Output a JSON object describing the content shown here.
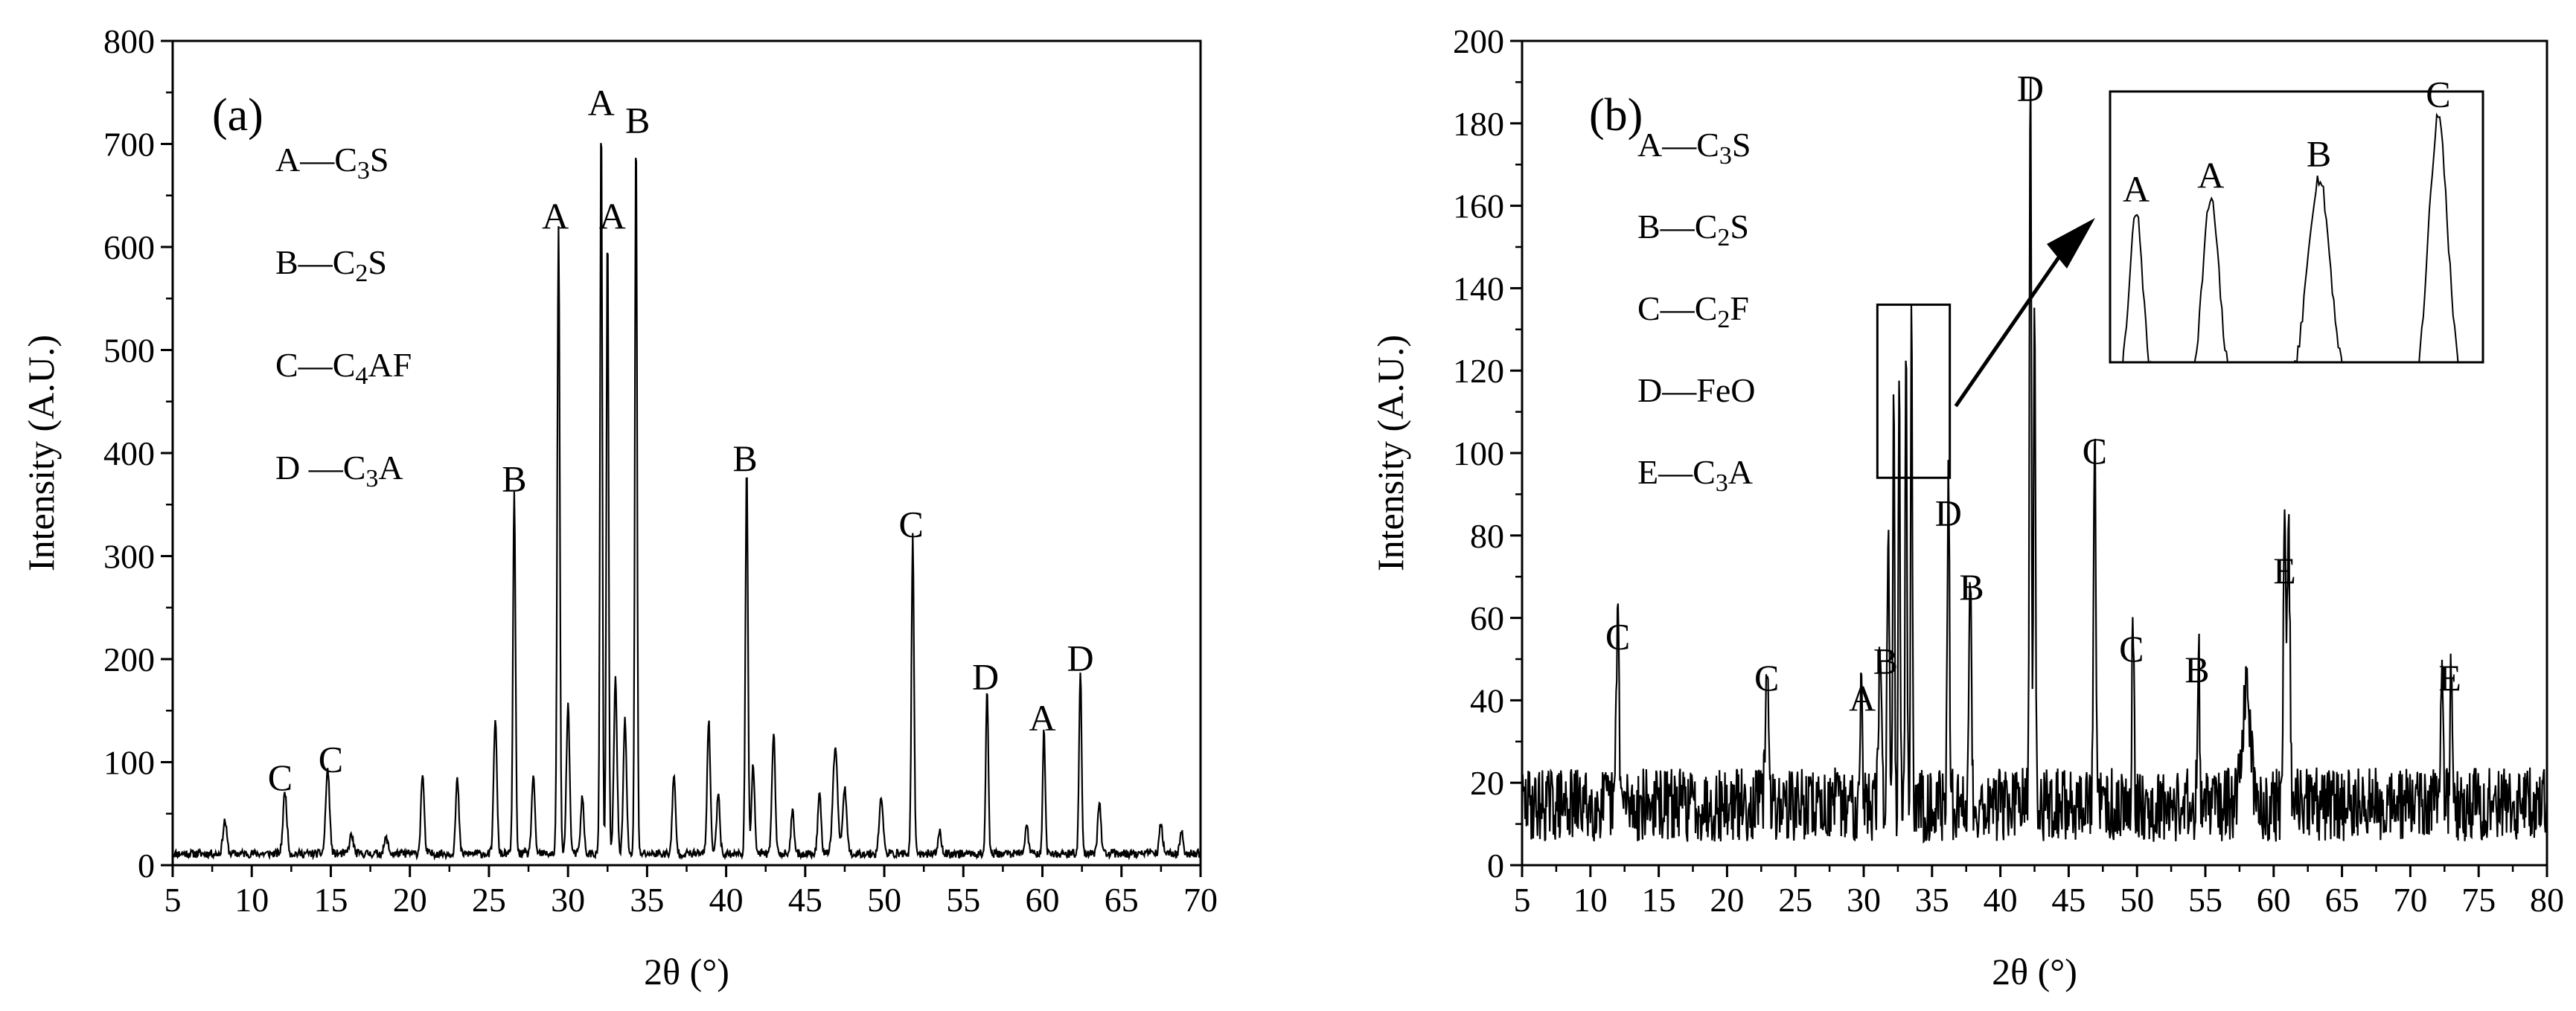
{
  "chart_data": [
    {
      "type": "line",
      "panel_label": "(a)",
      "xlabel": "2θ (°)",
      "ylabel": "Intensity (A.U.)",
      "xlim": [
        5,
        70
      ],
      "ylim": [
        0,
        800
      ],
      "xticks": [
        5,
        10,
        15,
        20,
        25,
        30,
        35,
        40,
        45,
        50,
        55,
        60,
        65,
        70
      ],
      "yticks": [
        0,
        100,
        200,
        300,
        400,
        500,
        600,
        700,
        800
      ],
      "grid": false,
      "legend_position": "top-left",
      "legend": [
        {
          "letter": "A",
          "formula": [
            [
              "C",
              ""
            ],
            [
              "3",
              "sub"
            ],
            [
              "S",
              ""
            ]
          ]
        },
        {
          "letter": "B",
          "formula": [
            [
              "C",
              ""
            ],
            [
              "2",
              "sub"
            ],
            [
              "S",
              ""
            ]
          ]
        },
        {
          "letter": "C",
          "formula": [
            [
              "C",
              ""
            ],
            [
              "4",
              "sub"
            ],
            [
              "AF",
              ""
            ]
          ]
        },
        {
          "letter": "D ",
          "formula": [
            [
              "C",
              ""
            ],
            [
              "3",
              "sub"
            ],
            [
              "A",
              ""
            ]
          ]
        }
      ],
      "baseline": 10,
      "noise": 8,
      "peaks": [
        {
          "x": 8.3,
          "y": 32,
          "w": 0.12
        },
        {
          "x": 12.1,
          "y": 60,
          "w": 0.12
        },
        {
          "x": 14.8,
          "y": 82,
          "w": 0.12
        },
        {
          "x": 16.3,
          "y": 18,
          "w": 0.12
        },
        {
          "x": 18.5,
          "y": 15,
          "w": 0.12
        },
        {
          "x": 20.8,
          "y": 78,
          "w": 0.1
        },
        {
          "x": 23.0,
          "y": 72,
          "w": 0.1
        },
        {
          "x": 25.4,
          "y": 132,
          "w": 0.1
        },
        {
          "x": 26.6,
          "y": 350,
          "w": 0.08
        },
        {
          "x": 27.8,
          "y": 75,
          "w": 0.1
        },
        {
          "x": 29.4,
          "y": 605,
          "w": 0.08
        },
        {
          "x": 30.0,
          "y": 145,
          "w": 0.1
        },
        {
          "x": 30.9,
          "y": 55,
          "w": 0.1
        },
        {
          "x": 32.1,
          "y": 715,
          "w": 0.07
        },
        {
          "x": 32.5,
          "y": 605,
          "w": 0.07
        },
        {
          "x": 33.0,
          "y": 170,
          "w": 0.1
        },
        {
          "x": 33.6,
          "y": 130,
          "w": 0.1
        },
        {
          "x": 34.3,
          "y": 700,
          "w": 0.07
        },
        {
          "x": 36.7,
          "y": 75,
          "w": 0.1
        },
        {
          "x": 38.9,
          "y": 128,
          "w": 0.1
        },
        {
          "x": 39.5,
          "y": 60,
          "w": 0.1
        },
        {
          "x": 41.3,
          "y": 372,
          "w": 0.08
        },
        {
          "x": 41.7,
          "y": 85,
          "w": 0.1
        },
        {
          "x": 43.0,
          "y": 118,
          "w": 0.1
        },
        {
          "x": 44.2,
          "y": 40,
          "w": 0.1
        },
        {
          "x": 45.9,
          "y": 62,
          "w": 0.1
        },
        {
          "x": 46.9,
          "y": 100,
          "w": 0.15
        },
        {
          "x": 47.5,
          "y": 65,
          "w": 0.12
        },
        {
          "x": 49.8,
          "y": 55,
          "w": 0.12
        },
        {
          "x": 51.8,
          "y": 308,
          "w": 0.08
        },
        {
          "x": 53.5,
          "y": 22,
          "w": 0.1
        },
        {
          "x": 56.5,
          "y": 160,
          "w": 0.08
        },
        {
          "x": 59.0,
          "y": 28,
          "w": 0.1
        },
        {
          "x": 60.1,
          "y": 120,
          "w": 0.08
        },
        {
          "x": 62.4,
          "y": 178,
          "w": 0.08
        },
        {
          "x": 63.6,
          "y": 52,
          "w": 0.1
        },
        {
          "x": 67.5,
          "y": 30,
          "w": 0.1
        },
        {
          "x": 68.8,
          "y": 22,
          "w": 0.1
        }
      ],
      "annotations": [
        {
          "text": "A",
          "x": 32.1,
          "y": 722
        },
        {
          "text": "B",
          "x": 34.4,
          "y": 705
        },
        {
          "text": "A",
          "x": 29.2,
          "y": 612
        },
        {
          "text": "A",
          "x": 32.8,
          "y": 612
        },
        {
          "text": "B",
          "x": 26.6,
          "y": 357
        },
        {
          "text": "B",
          "x": 41.2,
          "y": 377
        },
        {
          "text": "C",
          "x": 51.7,
          "y": 313
        },
        {
          "text": "D",
          "x": 56.4,
          "y": 165
        },
        {
          "text": "A",
          "x": 60.0,
          "y": 125
        },
        {
          "text": "D",
          "x": 62.4,
          "y": 183
        },
        {
          "text": "C",
          "x": 11.8,
          "y": 67
        },
        {
          "text": "C",
          "x": 15.0,
          "y": 85
        }
      ]
    },
    {
      "type": "line",
      "panel_label": "(b)",
      "xlabel": "2θ (°)",
      "ylabel": "Intensity (A.U.)",
      "xlim": [
        5,
        80
      ],
      "ylim": [
        0,
        200
      ],
      "xticks": [
        5,
        10,
        15,
        20,
        25,
        30,
        35,
        40,
        45,
        50,
        55,
        60,
        65,
        70,
        75,
        80
      ],
      "yticks": [
        0,
        20,
        40,
        60,
        80,
        100,
        120,
        140,
        160,
        180,
        200
      ],
      "grid": false,
      "legend_position": "top-left",
      "legend": [
        {
          "letter": "A",
          "formula": [
            [
              "C",
              ""
            ],
            [
              "3",
              "sub"
            ],
            [
              "S",
              ""
            ]
          ]
        },
        {
          "letter": "B",
          "formula": [
            [
              "C",
              ""
            ],
            [
              "2",
              "sub"
            ],
            [
              "S",
              ""
            ]
          ]
        },
        {
          "letter": "C",
          "formula": [
            [
              "C",
              ""
            ],
            [
              "2",
              "sub"
            ],
            [
              "F",
              ""
            ]
          ]
        },
        {
          "letter": "D",
          "formula": [
            [
              "FeO",
              ""
            ]
          ]
        },
        {
          "letter": "E",
          "formula": [
            [
              "C",
              ""
            ],
            [
              "3",
              "sub"
            ],
            [
              "A",
              ""
            ]
          ]
        }
      ],
      "baseline": 12,
      "noise": 18,
      "peaks": [
        {
          "x": 12.0,
          "y": 48,
          "w": 0.1
        },
        {
          "x": 22.9,
          "y": 38,
          "w": 0.1
        },
        {
          "x": 29.8,
          "y": 28,
          "w": 0.1
        },
        {
          "x": 31.2,
          "y": 38,
          "w": 0.1
        },
        {
          "x": 31.8,
          "y": 70,
          "w": 0.08
        },
        {
          "x": 32.2,
          "y": 110,
          "w": 0.06
        },
        {
          "x": 32.6,
          "y": 115,
          "w": 0.06
        },
        {
          "x": 33.1,
          "y": 122,
          "w": 0.06
        },
        {
          "x": 33.5,
          "y": 129,
          "w": 0.06
        },
        {
          "x": 36.2,
          "y": 78,
          "w": 0.08
        },
        {
          "x": 37.8,
          "y": 60,
          "w": 0.08
        },
        {
          "x": 42.2,
          "y": 181,
          "w": 0.07
        },
        {
          "x": 42.5,
          "y": 125,
          "w": 0.07
        },
        {
          "x": 46.9,
          "y": 93,
          "w": 0.08
        },
        {
          "x": 49.7,
          "y": 45,
          "w": 0.08
        },
        {
          "x": 54.5,
          "y": 40,
          "w": 0.08
        },
        {
          "x": 58.0,
          "y": 28,
          "w": 0.3
        },
        {
          "x": 60.8,
          "y": 64,
          "w": 0.1
        },
        {
          "x": 61.1,
          "y": 62,
          "w": 0.1
        },
        {
          "x": 72.3,
          "y": 38,
          "w": 0.08
        },
        {
          "x": 73.0,
          "y": 37,
          "w": 0.08
        }
      ],
      "annotations": [
        {
          "text": "D",
          "x": 42.2,
          "y": 184
        },
        {
          "text": "C",
          "x": 46.9,
          "y": 96
        },
        {
          "text": "D",
          "x": 36.2,
          "y": 81
        },
        {
          "text": "B",
          "x": 37.9,
          "y": 63
        },
        {
          "text": "C",
          "x": 12.0,
          "y": 51
        },
        {
          "text": "C",
          "x": 22.9,
          "y": 41
        },
        {
          "text": "A",
          "x": 29.9,
          "y": 36
        },
        {
          "text": "B",
          "x": 31.6,
          "y": 45
        },
        {
          "text": "C",
          "x": 49.6,
          "y": 48
        },
        {
          "text": "B",
          "x": 54.4,
          "y": 43
        },
        {
          "text": "E",
          "x": 60.8,
          "y": 67
        },
        {
          "text": "E",
          "x": 72.9,
          "y": 41
        }
      ],
      "inset": {
        "source_box": {
          "x0": 31.0,
          "x1": 36.3,
          "y0": 94,
          "y1": 136
        },
        "peak_labels": [
          "A",
          "A",
          "B",
          "C"
        ]
      }
    }
  ]
}
